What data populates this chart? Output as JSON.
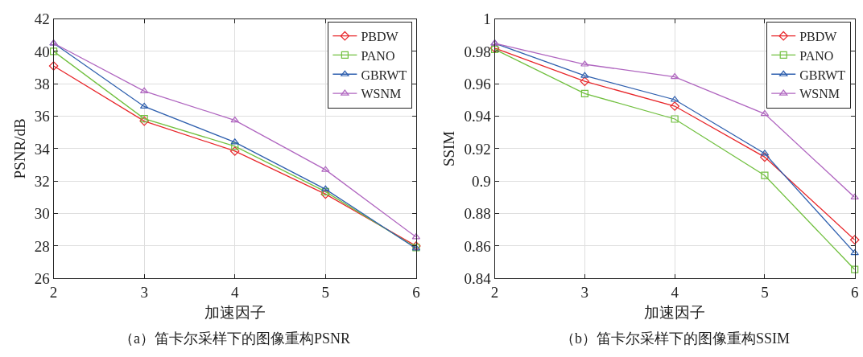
{
  "chart_data": [
    {
      "type": "line",
      "title": "（a）笛卡尔采样下的图像重构PSNR",
      "xlabel": "加速因子",
      "ylabel": "PSNR/dB",
      "x": [
        2,
        3,
        4,
        5,
        6
      ],
      "xlim": [
        2,
        6
      ],
      "xticks": [
        2,
        3,
        4,
        5,
        6
      ],
      "ylim": [
        26,
        42
      ],
      "yticks": [
        26,
        28,
        30,
        32,
        34,
        36,
        38,
        40,
        42
      ],
      "grid": true,
      "legend": "top right",
      "series": [
        {
          "name": "PBDW",
          "color": "#e8262a",
          "marker": "diamond",
          "values": [
            39.1,
            35.7,
            33.85,
            31.2,
            28.0
          ]
        },
        {
          "name": "PANO",
          "color": "#72c040",
          "marker": "square",
          "values": [
            40.0,
            35.85,
            34.15,
            31.35,
            27.9
          ]
        },
        {
          "name": "GBRWT",
          "color": "#2e5fae",
          "marker": "triangle",
          "values": [
            40.5,
            36.6,
            34.4,
            31.5,
            27.85
          ]
        },
        {
          "name": "WSNM",
          "color": "#b066c0",
          "marker": "triangle",
          "values": [
            40.5,
            37.55,
            35.75,
            32.7,
            28.55
          ]
        }
      ]
    },
    {
      "type": "line",
      "title": "（b）笛卡尔采样下的图像重构SSIM",
      "xlabel": "加速因子",
      "ylabel": "SSIM",
      "x": [
        2,
        3,
        4,
        5,
        6
      ],
      "xlim": [
        2,
        6
      ],
      "xticks": [
        2,
        3,
        4,
        5,
        6
      ],
      "ylim": [
        0.84,
        1
      ],
      "yticks": [
        0.84,
        0.86,
        0.88,
        0.9,
        0.92,
        0.94,
        0.96,
        0.98,
        1
      ],
      "grid": true,
      "legend": "top right",
      "series": [
        {
          "name": "PBDW",
          "color": "#e8262a",
          "marker": "diamond",
          "values": [
            0.982,
            0.9615,
            0.9462,
            0.9148,
            0.8638
          ]
        },
        {
          "name": "PANO",
          "color": "#72c040",
          "marker": "square",
          "values": [
            0.9812,
            0.954,
            0.9383,
            0.9035,
            0.8455
          ]
        },
        {
          "name": "GBRWT",
          "color": "#2e5fae",
          "marker": "triangle",
          "values": [
            0.985,
            0.965,
            0.9502,
            0.917,
            0.8557
          ]
        },
        {
          "name": "WSNM",
          "color": "#b066c0",
          "marker": "triangle",
          "values": [
            0.985,
            0.972,
            0.9643,
            0.9415,
            0.89
          ]
        }
      ]
    }
  ]
}
